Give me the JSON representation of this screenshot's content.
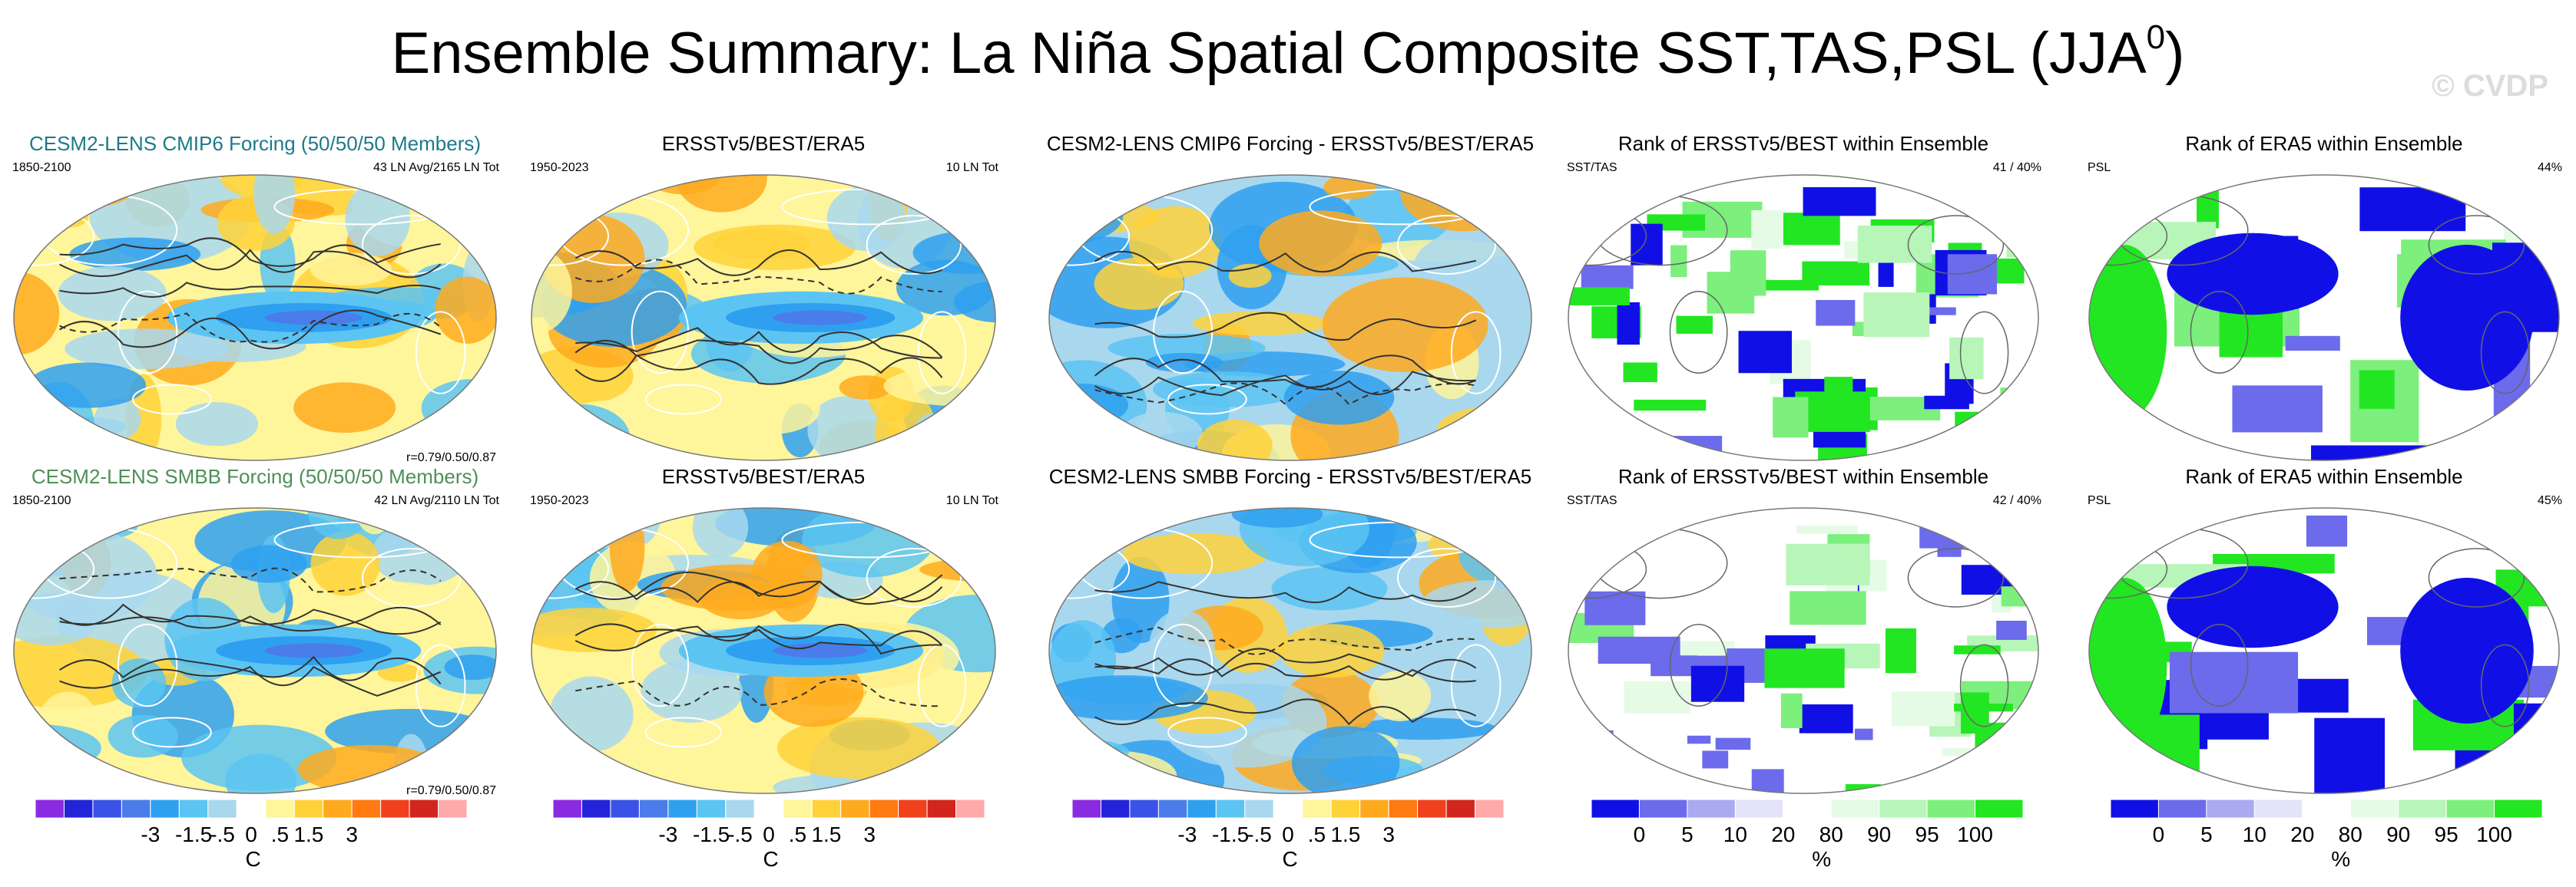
{
  "header": {
    "title": "Ensemble Summary: La Niña Spatial Composite SST,TAS,PSL (JJA",
    "title_sup": "0",
    "title_close": ")",
    "watermark": "© CVDP"
  },
  "chart_data": [
    {
      "type": "heatmap",
      "title": "CESM2-LENS CMIP6 Forcing (50/50/50 Members)",
      "left_label": "1850-2100",
      "right_label": "43 LN Avg/2165 LN Tot",
      "bottom_label": "r=0.79/0.50/0.87",
      "field": "anomaly",
      "units": "C"
    },
    {
      "type": "heatmap",
      "title": "ERSSTv5/BEST/ERA5",
      "left_label": "1950-2023",
      "right_label": "10 LN Tot",
      "field": "anomaly",
      "units": "C"
    },
    {
      "type": "heatmap",
      "title": "CESM2-LENS CMIP6 Forcing - ERSSTv5/BEST/ERA5",
      "field": "difference",
      "units": "C"
    },
    {
      "type": "heatmap",
      "title": "Rank of ERSSTv5/BEST within Ensemble",
      "left_label": "SST/TAS",
      "right_label": "41 /  40%",
      "field": "rank",
      "units": "%"
    },
    {
      "type": "heatmap",
      "title": "Rank of ERA5 within Ensemble",
      "left_label": "PSL",
      "right_label": "44%",
      "field": "rank",
      "units": "%"
    },
    {
      "type": "heatmap",
      "title": "CESM2-LENS SMBB Forcing (50/50/50 Members)",
      "left_label": "1850-2100",
      "right_label": "42 LN Avg/2110 LN Tot",
      "bottom_label": "r=0.79/0.50/0.87",
      "field": "anomaly",
      "units": "C"
    },
    {
      "type": "heatmap",
      "title": "ERSSTv5/BEST/ERA5",
      "left_label": "1950-2023",
      "right_label": "10 LN Tot",
      "field": "anomaly",
      "units": "C"
    },
    {
      "type": "heatmap",
      "title": "CESM2-LENS SMBB Forcing - ERSSTv5/BEST/ERA5",
      "field": "difference",
      "units": "C"
    },
    {
      "type": "heatmap",
      "title": "Rank of ERSSTv5/BEST within Ensemble",
      "left_label": "SST/TAS",
      "right_label": "42 /  40%",
      "field": "rank",
      "units": "%"
    },
    {
      "type": "heatmap",
      "title": "Rank of ERA5 within Ensemble",
      "left_label": "PSL",
      "right_label": "45%",
      "field": "rank",
      "units": "%"
    }
  ],
  "colorbars": {
    "anomaly": {
      "unit": "C",
      "labels": [
        "-3",
        "-1.5",
        "-.5",
        "0",
        ".5",
        "1.5",
        "3"
      ],
      "colors": [
        "#8a2be2",
        "#2323d8",
        "#3a53e6",
        "#4a7de9",
        "#2fa0f0",
        "#5cc4f2",
        "#a9d8ee",
        "#ffffff",
        "#fff59a",
        "#ffd23a",
        "#ffaa1e",
        "#ff7a10",
        "#f0401c",
        "#d0261e",
        "#ffaaaa"
      ]
    },
    "rank": {
      "unit": "%",
      "labels": [
        "0",
        "5",
        "10",
        "20",
        "80",
        "90",
        "95",
        "100"
      ],
      "colors": [
        "#1010e6",
        "#6b6bec",
        "#aaaaf0",
        "#e4e4f8",
        "#ffffff",
        "#e6fbe6",
        "#b8f5b8",
        "#7cef7c",
        "#22e622"
      ]
    }
  },
  "palette": {
    "ocean_neutral": "#a9d8ee",
    "warm": "#ffd23a",
    "cool": "#2fa0f0",
    "rank_low": "#1010e6",
    "rank_high": "#22e622",
    "title_teal": "#1d7a8a",
    "title_green": "#4f8f58"
  }
}
